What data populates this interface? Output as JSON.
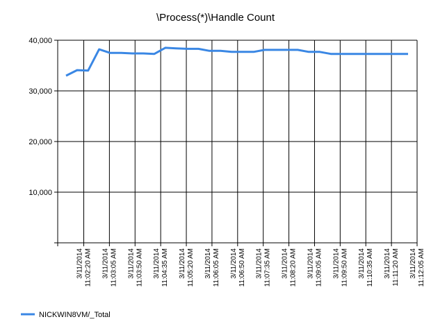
{
  "chart_data": {
    "type": "line",
    "title": "\\Process(*)\\Handle Count",
    "xlabel": "",
    "ylabel": "",
    "ylim": [
      0,
      40000
    ],
    "yticks": [
      0,
      10000,
      20000,
      30000,
      40000
    ],
    "ytick_labels": [
      "",
      "10,000",
      "20,000",
      "30,000",
      "40,000"
    ],
    "grid": true,
    "legend_position": "bottom-left",
    "x_tick_labels": [
      {
        "date": "3/11/2014",
        "time": "11:02:20 AM"
      },
      {
        "date": "3/11/2014",
        "time": "11:03:05 AM"
      },
      {
        "date": "3/11/2014",
        "time": "11:03:50 AM"
      },
      {
        "date": "3/11/2014",
        "time": "11:04:35 AM"
      },
      {
        "date": "3/11/2014",
        "time": "11:05:20 AM"
      },
      {
        "date": "3/11/2014",
        "time": "11:06:05 AM"
      },
      {
        "date": "3/11/2014",
        "time": "11:06:50 AM"
      },
      {
        "date": "3/11/2014",
        "time": "11:07:35 AM"
      },
      {
        "date": "3/11/2014",
        "time": "11:08:20 AM"
      },
      {
        "date": "3/11/2014",
        "time": "11:09:05 AM"
      },
      {
        "date": "3/11/2014",
        "time": "11:09:50 AM"
      },
      {
        "date": "3/11/2014",
        "time": "11:10:35 AM"
      },
      {
        "date": "3/11/2014",
        "time": "11:11:20 AM"
      },
      {
        "date": "3/11/2014",
        "time": "11:12:05 AM"
      }
    ],
    "series": [
      {
        "name": "NICKWIN8VM/_Total",
        "color": "#3a87e4",
        "values": [
          33000,
          34100,
          34000,
          38200,
          37500,
          37500,
          37400,
          37400,
          37300,
          38500,
          38400,
          38300,
          38300,
          37900,
          37900,
          37700,
          37700,
          37700,
          38100,
          38100,
          38100,
          38100,
          37700,
          37700,
          37300,
          37300,
          37300,
          37300,
          37300,
          37300,
          37300,
          37300
        ]
      }
    ]
  }
}
